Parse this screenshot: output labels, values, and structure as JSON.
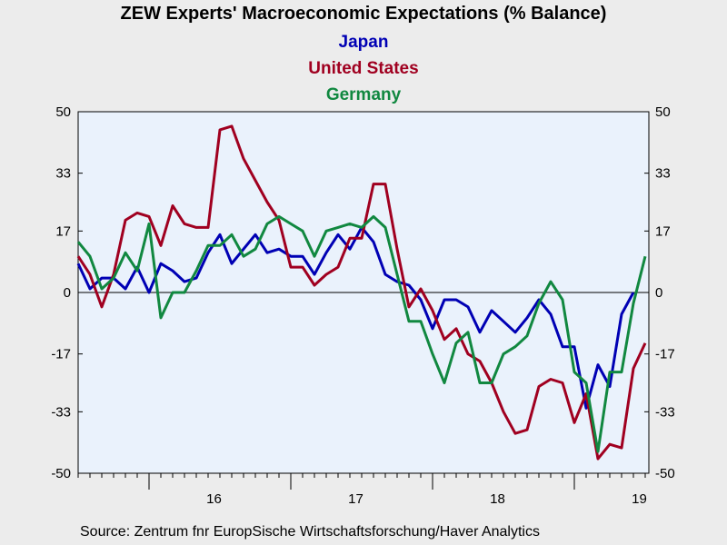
{
  "chart_data": {
    "type": "line",
    "title": "ZEW Experts' Macroeconomic Expectations (% Balance)",
    "source": "Source:  Zentrum fnr EuropSische Wirtschaftsforschung/Haver Analytics",
    "x_start_month": "2015-07",
    "x_tick_labels": [
      "16",
      "17",
      "18",
      "19"
    ],
    "y_ticks": [
      50,
      33,
      17,
      0,
      -17,
      -33,
      -50
    ],
    "ylim": [
      -50,
      50
    ],
    "grid": false,
    "zero_line": true,
    "legend_placement": "top-center",
    "background_color": "#eaf2fc",
    "series": [
      {
        "name": "Japan",
        "color": "#0000b4",
        "values": [
          8,
          1,
          4,
          4,
          1,
          7,
          0,
          8,
          6,
          3,
          4,
          11,
          16,
          8,
          12,
          16,
          11,
          12,
          10,
          10,
          5,
          11,
          16,
          12,
          18,
          14,
          5,
          3,
          2,
          -2,
          -10,
          -2,
          -2,
          -4,
          -11,
          -5,
          -8,
          -11,
          -7,
          -2,
          -6,
          -15,
          -15,
          -32,
          -20,
          -26,
          -6,
          0
        ]
      },
      {
        "name": "United States",
        "color": "#a00020",
        "values": [
          10,
          5,
          -4,
          5,
          20,
          22,
          21,
          13,
          24,
          19,
          18,
          18,
          45,
          46,
          37,
          31,
          25,
          20,
          7,
          7,
          2,
          5,
          7,
          15,
          15,
          30,
          30,
          12,
          -4,
          1,
          -5,
          -13,
          -10,
          -17,
          -19,
          -25,
          -33,
          -39,
          -38,
          -26,
          -24,
          -25,
          -36,
          -28,
          -46,
          -42,
          -43,
          -21,
          -14
        ]
      },
      {
        "name": "Germany",
        "color": "#118840",
        "values": [
          14,
          10,
          1,
          4,
          11,
          6,
          19,
          -7,
          0,
          0,
          6,
          13,
          13,
          16,
          10,
          12,
          19,
          21,
          19,
          17,
          10,
          17,
          18,
          19,
          18,
          21,
          18,
          5,
          -8,
          -8,
          -17,
          -25,
          -14,
          -11,
          -25,
          -25,
          -17,
          -15,
          -12,
          -3,
          3,
          -2,
          -22,
          -25,
          -44,
          -22,
          -22,
          -3,
          10
        ]
      }
    ]
  }
}
